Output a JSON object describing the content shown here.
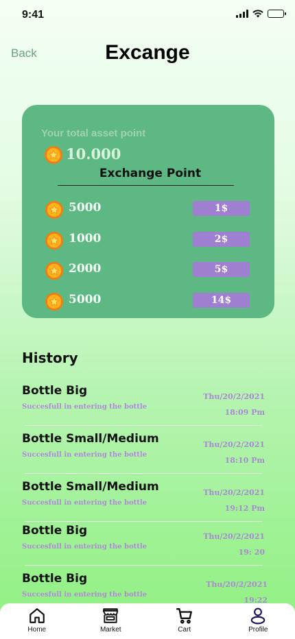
{
  "status_bar": {
    "time": "9:41"
  },
  "header": {
    "back_label": "Back",
    "title": "Excange"
  },
  "asset_card": {
    "label": "Your total asset point",
    "total_points": "10.000",
    "exchange_title": "Exchange Point",
    "options": [
      {
        "points": "5000",
        "price": "1$"
      },
      {
        "points": "1000",
        "price": "2$"
      },
      {
        "points": "2000",
        "price": "5$"
      },
      {
        "points": "5000",
        "price": "14$"
      }
    ]
  },
  "history": {
    "title": "History",
    "items": [
      {
        "name": "Bottle Big",
        "description": "Succesfull in entering the bottle",
        "date": "Thu/20/2/2021",
        "time": "18:09 Pm"
      },
      {
        "name": "Bottle Small/Medium",
        "description": "Succesfull in entering the bottle",
        "date": "Thu/20/2/2021",
        "time": "18:10 Pm"
      },
      {
        "name": "Bottle Small/Medium",
        "description": "Succesfull in entering the bottle",
        "date": "Thu/20/2/2021",
        "time": "19:12 Pm"
      },
      {
        "name": "Bottle Big",
        "description": "Succesfull in entering the bottle",
        "date": "Thu/20/2/2021",
        "time": "19: 20"
      },
      {
        "name": "Bottle Big",
        "description": "Succesfull in entering the bottle",
        "date": "Thu/20/2/2021",
        "time": "19:22"
      }
    ]
  },
  "bottom_nav": {
    "items": [
      {
        "label": "Home",
        "icon": "home-icon"
      },
      {
        "label": "Market",
        "icon": "store-icon"
      },
      {
        "label": "Cart",
        "icon": "cart-icon"
      },
      {
        "label": "Profile",
        "icon": "profile-icon"
      }
    ]
  },
  "colors": {
    "card_green": "#5eb883",
    "price_purple": "#9f7fcf",
    "history_purple": "#a88ad0",
    "coin_orange": "#f07d12",
    "back_green": "#6aa27a"
  }
}
